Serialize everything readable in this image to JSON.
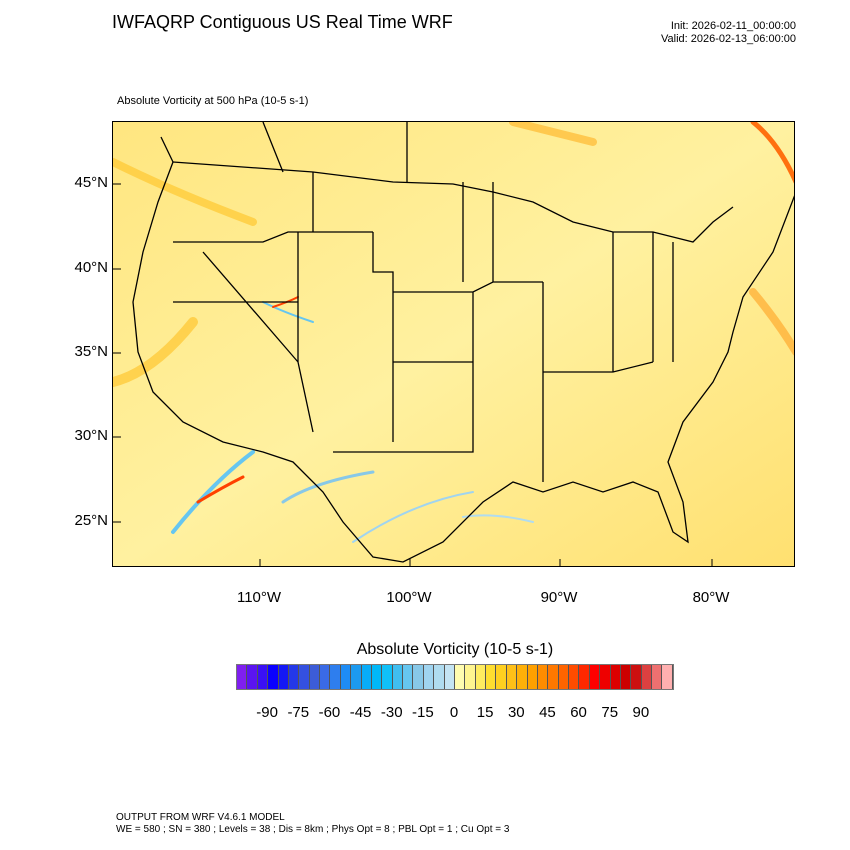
{
  "header": {
    "title": "IWFAQRP Contiguous US Real Time WRF",
    "init": "Init: 2026-02-11_00:00:00",
    "valid": "Valid: 2026-02-13_06:00:00",
    "field": "Absolute Vorticity at 500 hPa   (10-5 s-1)"
  },
  "chart_data": {
    "type": "heatmap",
    "title": "Absolute Vorticity at 500 hPa (10-5 s-1)",
    "lat_labels": [
      "45°N",
      "40°N",
      "35°N",
      "30°N",
      "25°N"
    ],
    "lon_labels": [
      "110°W",
      "100°W",
      "90°W",
      "80°W"
    ],
    "dominant_range": [
      0,
      30
    ],
    "colorbar": {
      "title": "Absolute Vorticity  (10-5 s-1)",
      "tick_labels": [
        "-90",
        "-75",
        "-60",
        "-45",
        "-30",
        "-15",
        "0",
        "15",
        "30",
        "45",
        "60",
        "75",
        "90"
      ],
      "levels_min": -100,
      "levels_max": 100,
      "level_step": 5,
      "colors": [
        "#7f1fef",
        "#5a14f0",
        "#3a10f5",
        "#0a00ff",
        "#1418f5",
        "#2438e8",
        "#3450e0",
        "#3c5cd8",
        "#3a6ae6",
        "#2e7eee",
        "#1e8cf5",
        "#1c9af0",
        "#08acf8",
        "#00b8f8",
        "#10c0f8",
        "#40bef0",
        "#66c6f0",
        "#88c8e8",
        "#a0d4f0",
        "#b0dcf0",
        "#c4e4f4",
        "#fffcb0",
        "#fff590",
        "#ffec60",
        "#ffde30",
        "#ffd020",
        "#ffc018",
        "#ffb008",
        "#ffa000",
        "#ff8c00",
        "#ff7800",
        "#ff6400",
        "#ff4c00",
        "#ff2800",
        "#ff0000",
        "#ee0000",
        "#dc0000",
        "#cc0000",
        "#cc1010",
        "#dc4040",
        "#ee7070",
        "#ffb0b0"
      ]
    }
  },
  "footer": {
    "line1": "OUTPUT FROM WRF V4.6.1 MODEL",
    "line2": "WE = 580 ; SN = 380 ; Levels = 38 ; Dis = 8km ; Phys Opt = 8 ; PBL Opt = 1 ; Cu Opt = 3"
  }
}
